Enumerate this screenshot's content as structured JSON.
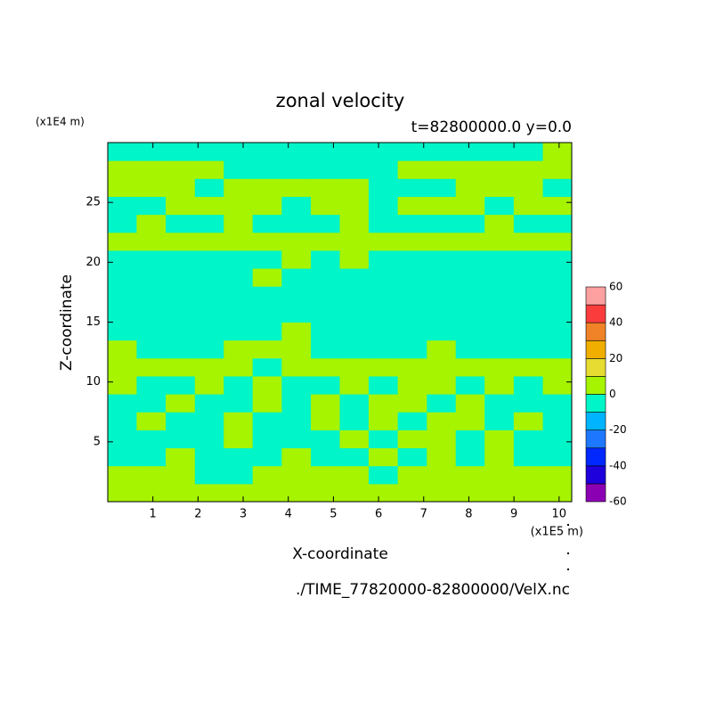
{
  "chart_data": {
    "type": "contour",
    "title": "zonal velocity",
    "subtitle": "t=82800000.0 y=0.0",
    "xlabel": "X-coordinate",
    "ylabel": "Z-coordinate",
    "x_unit": "(x1E5 m)",
    "y_unit": "(x1E4 m)",
    "footer": "./TIME_77820000-82800000/VelX.nc",
    "xlim": [
      0,
      10.28
    ],
    "ylim": [
      0,
      30
    ],
    "xticks": [
      1,
      2,
      3,
      4,
      5,
      6,
      7,
      8,
      9,
      10
    ],
    "yticks": [
      5,
      10,
      15,
      20,
      25
    ],
    "x": [
      0.32,
      0.96,
      1.61,
      2.25,
      2.89,
      3.53,
      4.18,
      4.82,
      5.46,
      6.1,
      6.75,
      7.39,
      8.03,
      8.67,
      9.32,
      9.96
    ],
    "y": [
      0.75,
      2.25,
      3.75,
      5.25,
      6.75,
      8.25,
      9.75,
      11.25,
      12.75,
      14.25,
      15.75,
      17.25,
      18.75,
      20.25,
      21.75,
      23.25,
      24.75,
      26.25,
      27.75,
      29.25
    ],
    "z": [
      [
        4,
        4,
        4,
        4,
        4,
        4,
        4,
        4,
        4,
        4,
        4,
        4,
        4,
        4,
        4,
        4
      ],
      [
        4,
        4,
        4,
        -4,
        -4,
        4,
        4,
        4,
        4,
        -4,
        4,
        4,
        4,
        4,
        4,
        4
      ],
      [
        -4,
        -4,
        4,
        -4,
        -4,
        -4,
        4,
        -4,
        -4,
        4,
        -4,
        4,
        -4,
        4,
        -4,
        -4
      ],
      [
        -4,
        -4,
        -4,
        -4,
        4,
        -4,
        -4,
        -4,
        4,
        -4,
        4,
        4,
        -4,
        4,
        -4,
        -4
      ],
      [
        -4,
        4,
        -4,
        -4,
        4,
        -4,
        -4,
        4,
        -4,
        4,
        -4,
        4,
        4,
        -4,
        4,
        -4
      ],
      [
        -4,
        -4,
        4,
        -4,
        -4,
        4,
        -4,
        4,
        -4,
        4,
        4,
        -4,
        4,
        -4,
        -4,
        -4
      ],
      [
        4,
        -4,
        -4,
        4,
        -4,
        4,
        -4,
        -4,
        4,
        -4,
        4,
        4,
        -4,
        4,
        -4,
        4
      ],
      [
        4,
        4,
        4,
        4,
        4,
        -4,
        4,
        4,
        4,
        4,
        4,
        4,
        4,
        4,
        4,
        4
      ],
      [
        4,
        -4,
        -4,
        -4,
        4,
        4,
        4,
        -4,
        -4,
        -4,
        -4,
        4,
        -4,
        -4,
        -4,
        -4
      ],
      [
        -4,
        -4,
        -4,
        -4,
        -4,
        -4,
        4,
        -4,
        -4,
        -4,
        -4,
        -4,
        -4,
        -4,
        -4,
        -4
      ],
      [
        -4,
        -4,
        -4,
        -4,
        -4,
        -4,
        -4,
        -4,
        -4,
        -4,
        -4,
        -4,
        -4,
        -4,
        -4,
        -4
      ],
      [
        -4,
        -4,
        -4,
        -4,
        -4,
        -4,
        -4,
        -4,
        -4,
        -4,
        -4,
        -4,
        -4,
        -4,
        -4,
        -4
      ],
      [
        -4,
        -4,
        -4,
        -4,
        -4,
        4,
        -4,
        -4,
        -4,
        -4,
        -4,
        -4,
        -4,
        -4,
        -4,
        -4
      ],
      [
        -4,
        -4,
        -4,
        -4,
        -4,
        -4,
        4,
        -4,
        4,
        -4,
        -4,
        -4,
        -4,
        -4,
        -4,
        -4
      ],
      [
        4,
        4,
        4,
        4,
        4,
        4,
        4,
        4,
        4,
        4,
        4,
        4,
        4,
        4,
        4,
        4
      ],
      [
        -4,
        4,
        -4,
        -4,
        4,
        -4,
        -4,
        -4,
        4,
        -4,
        -4,
        -4,
        -4,
        4,
        -4,
        -4
      ],
      [
        -4,
        -4,
        4,
        4,
        4,
        4,
        -4,
        4,
        4,
        -4,
        4,
        4,
        4,
        -4,
        4,
        4
      ],
      [
        4,
        4,
        4,
        -4,
        4,
        4,
        4,
        4,
        4,
        -4,
        -4,
        -4,
        4,
        4,
        4,
        -4
      ],
      [
        4,
        4,
        4,
        4,
        -4,
        -4,
        -4,
        -4,
        -4,
        -4,
        4,
        4,
        4,
        4,
        4,
        4
      ],
      [
        -4,
        -4,
        -4,
        -4,
        -4,
        -4,
        -4,
        -4,
        -4,
        -4,
        -4,
        -4,
        -4,
        -4,
        -4,
        4
      ]
    ],
    "levels": [
      -60,
      -50,
      -40,
      -30,
      -20,
      -10,
      0,
      10,
      20,
      30,
      40,
      50,
      60
    ],
    "colors": [
      "#8c00b4",
      "#1e00dc",
      "#0028ff",
      "#1e78ff",
      "#00b4ff",
      "#00f5c8",
      "#a6f400",
      "#e6dc32",
      "#f0af00",
      "#f08228",
      "#fa3c3c",
      "#ffa0a0"
    ],
    "colorbar_ticks": [
      -60,
      -40,
      -20,
      0,
      20,
      40,
      60
    ]
  }
}
